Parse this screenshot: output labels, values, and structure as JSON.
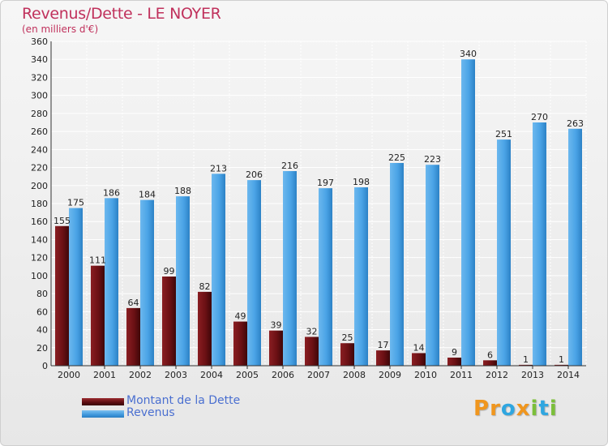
{
  "header": {
    "title": "Revenus/Dette - LE NOYER",
    "subtitle": "(en milliers d'€)"
  },
  "legend": {
    "items": [
      {
        "label": "Montant de la Dette",
        "color": "#6b1014"
      },
      {
        "label": "Revenus",
        "color": "#4aa3e6"
      }
    ]
  },
  "logo": {
    "letters": [
      "P",
      "r",
      "o",
      "x",
      "i",
      "t",
      "i"
    ],
    "colors": [
      "#f0961e",
      "#f0961e",
      "#2fa6e0",
      "#f0961e",
      "#7bbf3a",
      "#2fa6e0",
      "#7bbf3a"
    ]
  },
  "chart_data": {
    "type": "bar",
    "categories": [
      "2000",
      "2001",
      "2002",
      "2003",
      "2004",
      "2005",
      "2006",
      "2007",
      "2008",
      "2009",
      "2010",
      "2011",
      "2012",
      "2013",
      "2014"
    ],
    "series": [
      {
        "name": "Montant de la Dette",
        "color": "#6b1014",
        "values": [
          155,
          111,
          64,
          99,
          82,
          49,
          39,
          32,
          25,
          17,
          14,
          9,
          6,
          1,
          1
        ]
      },
      {
        "name": "Revenus",
        "color": "#4aa3e6",
        "values": [
          175,
          186,
          184,
          188,
          213,
          206,
          216,
          197,
          198,
          225,
          223,
          340,
          251,
          270,
          263
        ]
      }
    ],
    "ylim": [
      0,
      360
    ],
    "yticks": [
      0,
      20,
      40,
      60,
      80,
      100,
      120,
      140,
      160,
      180,
      200,
      220,
      240,
      260,
      280,
      300,
      320,
      340,
      360
    ],
    "grid": true
  }
}
